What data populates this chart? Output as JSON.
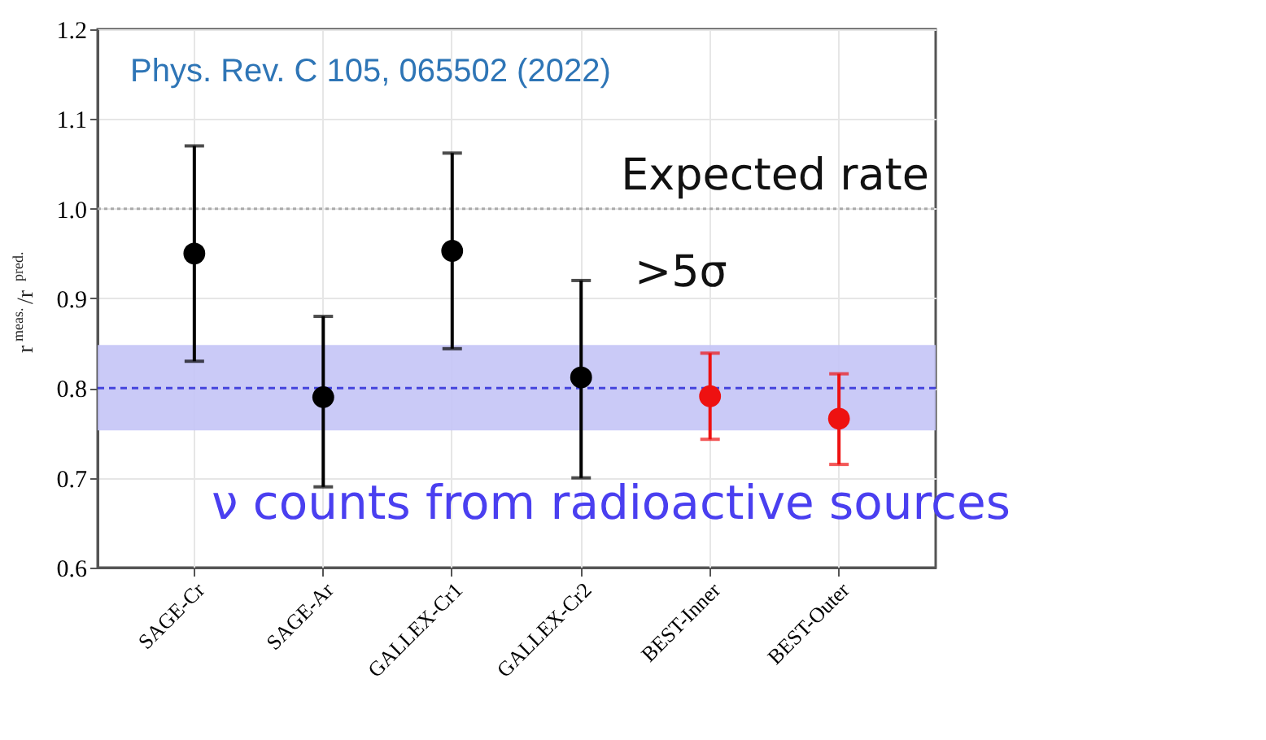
{
  "chart_data": {
    "type": "scatter",
    "ylabel": "r$^{meas.}$/r$^{pred.}$",
    "categories": [
      "SAGE-Cr",
      "SAGE-Ar",
      "GALLEX-Cr1",
      "GALLEX-Cr2",
      "BEST-Inner",
      "BEST-Outer"
    ],
    "series": [
      {
        "values": [
          0.95,
          0.79,
          0.953,
          0.812,
          0.791,
          0.766
        ],
        "colors": [
          "#000000",
          "#000000",
          "#000000",
          "#000000",
          "#ee1111",
          "#ee1111"
        ],
        "errors": [
          [
            0.83,
            1.07
          ],
          [
            0.69,
            0.88
          ],
          [
            0.844,
            1.062
          ],
          [
            0.7,
            0.92
          ],
          [
            0.743,
            0.839
          ],
          [
            0.715,
            0.816
          ]
        ]
      }
    ],
    "marker": "circle",
    "ylim": [
      0.6,
      1.2
    ],
    "yticks": [
      0.6,
      0.7,
      0.8,
      0.9,
      {
        "value": 1.0,
        "label": "1.0"
      },
      1.1,
      1.2
    ],
    "grid": true,
    "ref_lines": [
      {
        "axis": "y",
        "value": 1.0,
        "label": "Expected rate",
        "color": "#aaaaaa",
        "line_style": "dotted"
      },
      {
        "axis": "y",
        "value": 0.8,
        "label": null,
        "color": "#4444dd",
        "line_style": "dashed"
      }
    ],
    "bands": [
      {
        "axis": "y",
        "from": 0.753,
        "to": 0.848,
        "label": null,
        "color": "#c4c4f6"
      }
    ],
    "annotations": [
      "Phys. Rev. C 105, 065502 (2022)",
      ">5σ",
      "ν counts from radioactive sources"
    ]
  }
}
